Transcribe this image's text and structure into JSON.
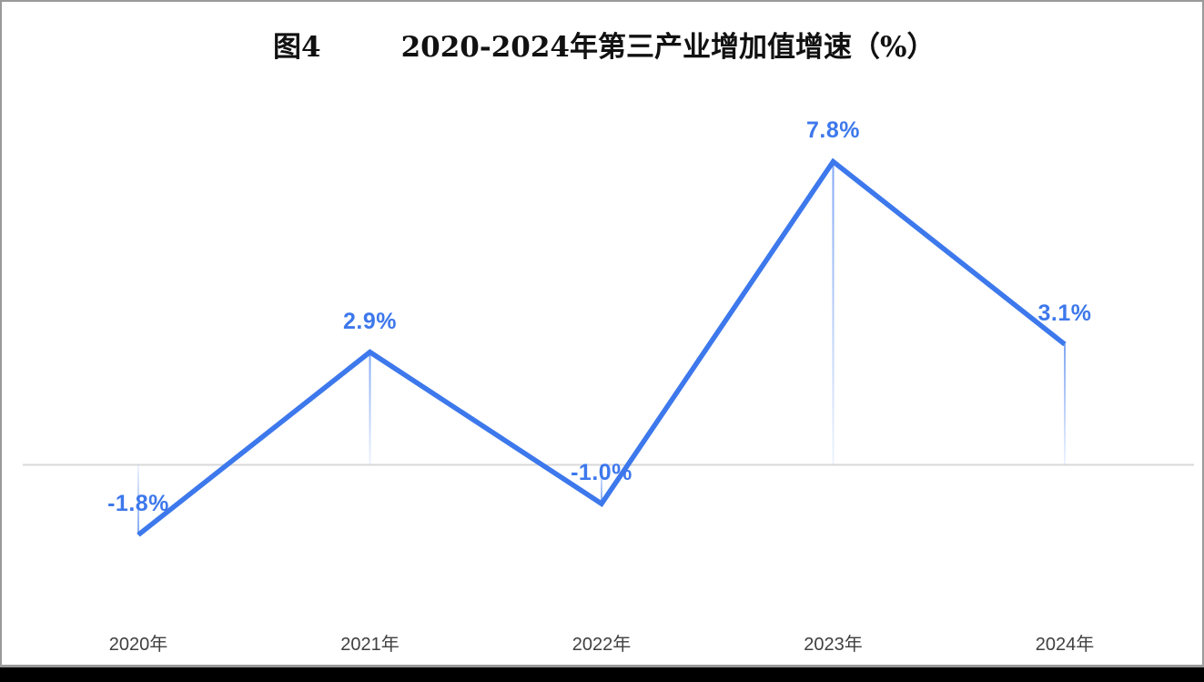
{
  "figure": {
    "label": "图4",
    "title": "2020-2024年第三产业增加值增速（%）"
  },
  "chart_data": {
    "type": "line",
    "title": "图4　2020-2024年第三产业增加值增速（%）",
    "categories": [
      "2020年",
      "2021年",
      "2022年",
      "2023年",
      "2024年"
    ],
    "values": [
      -1.8,
      2.9,
      -1.0,
      7.8,
      3.1
    ],
    "point_labels": [
      "-1.8%",
      "2.9%",
      "-1.0%",
      "7.8%",
      "3.1%"
    ],
    "series_name": "第三产业增加值增速",
    "unit": "%",
    "xlabel": "",
    "ylabel": "",
    "ylim": [
      -4.7,
      9.5
    ],
    "grid": false,
    "legend": false,
    "zero_axis_shown": true,
    "drop_lines_shown": true
  },
  "colors": {
    "line": "#3D78EC",
    "value_label": "#3D78EC",
    "axis_line": "#D9D9D9",
    "x_label": "#404040",
    "title": "#111111",
    "frame": "#9a9a9a",
    "bottom_bar": "#000000"
  }
}
